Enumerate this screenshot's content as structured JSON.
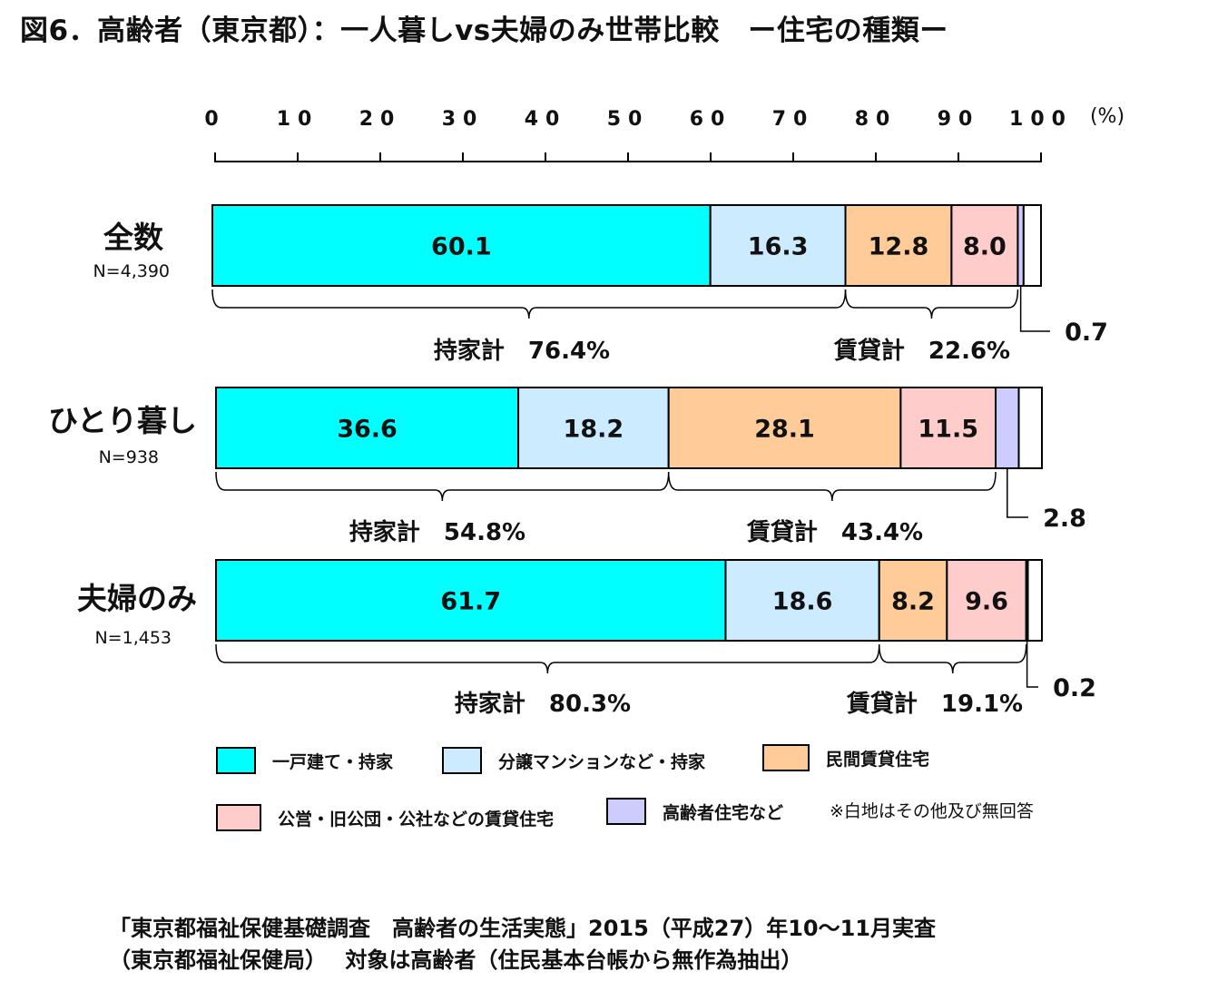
{
  "title": "図6．高齢者（東京都）：一人暮しvs夫婦のみ世帯比較　ー住宅の種類ー",
  "colors": {
    "detached": "#00FFFF",
    "condo": "#CCEBFF",
    "private_rental": "#FFCC99",
    "public_rental": "#FFCCCC",
    "elderly_housing": "#CCCCFF",
    "other": "#FFFFFF"
  },
  "chart_data": {
    "type": "bar",
    "orientation": "horizontal-stacked",
    "axis_ticks": [
      "0",
      "10",
      "20",
      "30",
      "40",
      "50",
      "60",
      "70",
      "80",
      "90",
      "100"
    ],
    "axis_unit": "(%)",
    "xlim": [
      0,
      100
    ],
    "categories": [
      {
        "label": "全数",
        "n": "N=4,390"
      },
      {
        "label": "ひとり暮し",
        "n": "N=938"
      },
      {
        "label": "夫婦のみ",
        "n": "N=1,453"
      }
    ],
    "series": [
      {
        "name": "一戸建て・持家",
        "color_key": "detached",
        "values": [
          60.1,
          36.6,
          61.7
        ],
        "labels": [
          "60.1",
          "36.6",
          "61.7"
        ]
      },
      {
        "name": "分譲マンションなど・持家",
        "color_key": "condo",
        "values": [
          16.3,
          18.2,
          18.6
        ],
        "labels": [
          "16.3",
          "18.2",
          "18.6"
        ]
      },
      {
        "name": "民間賃貸住宅",
        "color_key": "private_rental",
        "values": [
          12.8,
          28.1,
          8.2
        ],
        "labels": [
          "12.8",
          "28.1",
          "8.2"
        ]
      },
      {
        "name": "公営・旧公団・公社などの賃貸住宅",
        "color_key": "public_rental",
        "values": [
          8.0,
          11.5,
          9.6
        ],
        "labels": [
          "8.0",
          "11.5",
          "9.6"
        ]
      },
      {
        "name": "高齢者住宅など",
        "color_key": "elderly_housing",
        "values": [
          0.7,
          2.8,
          0.2
        ],
        "labels": [
          "0.7",
          "2.8",
          "0.2"
        ]
      },
      {
        "name": "",
        "color_key": "other",
        "values": [
          2.1,
          2.8,
          1.7
        ],
        "labels": [
          "",
          "",
          ""
        ]
      }
    ],
    "totals": [
      {
        "own": "持家計　76.4%",
        "rent": "賃貸計　22.6%"
      },
      {
        "own": "持家計　54.8%",
        "rent": "賃貸計　43.4%"
      },
      {
        "own": "持家計　80.3%",
        "rent": "賃貸計　19.1%"
      }
    ],
    "note": "※白地はその他及び無回答"
  },
  "source": {
    "line1": "「東京都福祉保健基礎調査　高齢者の生活実態」2015（平成27）年10～11月実査",
    "line2": "（東京都福祉保健局）　 対象は高齢者（住民基本台帳から無作為抽出）"
  }
}
